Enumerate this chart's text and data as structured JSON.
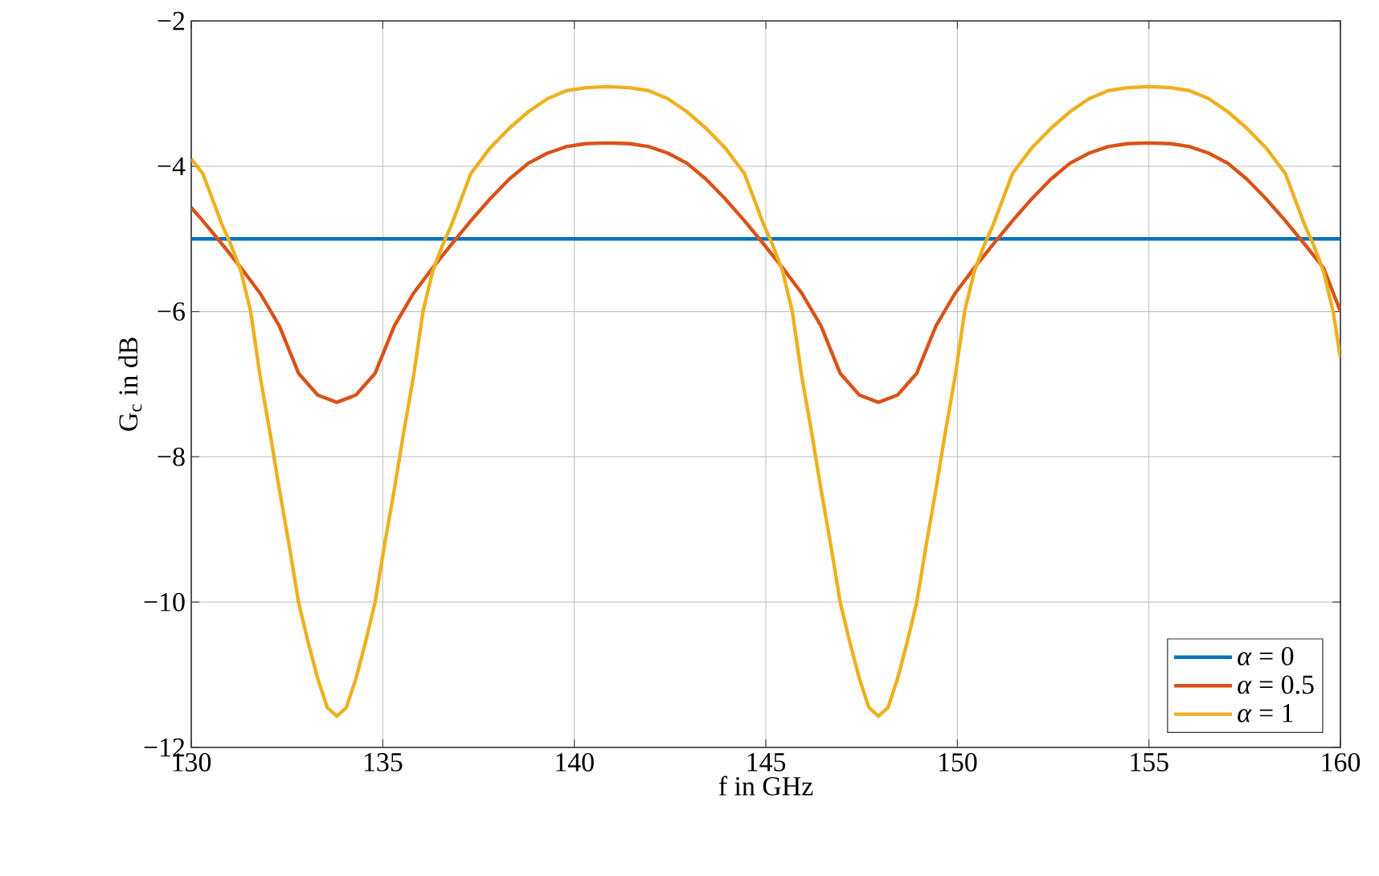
{
  "chart_data": {
    "type": "line",
    "xlabel": "f in GHz",
    "ylabel": "G$_{c}$ in dB",
    "xlim": [
      130,
      160
    ],
    "ylim": [
      -12,
      -2
    ],
    "xticks": [
      130,
      135,
      140,
      145,
      150,
      155,
      160
    ],
    "yticks": [
      {
        "value": -12,
        "label": "−12"
      },
      {
        "value": -10,
        "label": "−10"
      },
      {
        "value": -8,
        "label": "−8"
      },
      {
        "value": -6,
        "label": "−6"
      },
      {
        "value": -4,
        "label": "−4"
      },
      {
        "value": -2,
        "label": "−2"
      }
    ],
    "grid": true,
    "legend": "bottom right",
    "line_style": "solid",
    "marker": "none",
    "series": [
      {
        "name": "*α* = 0",
        "color": "#0072bd",
        "x": [
          130,
          160
        ],
        "values": [
          -5,
          -5
        ]
      },
      {
        "name": "*α* = 0.5",
        "color": "#d95319",
        "x": [
          130,
          130.3,
          130.8,
          131.3,
          131.8,
          132.3,
          132.8,
          133.3,
          133.8,
          134.3,
          134.8,
          135.3,
          135.8,
          136.3,
          136.8,
          137.3,
          137.8,
          138.3,
          138.8,
          139.3,
          139.8,
          140.3,
          140.87,
          141.44,
          141.94,
          142.44,
          142.94,
          143.44,
          143.94,
          144.44,
          144.94,
          145.44,
          145.94,
          146.44,
          146.94,
          147.44,
          147.94,
          148.44,
          148.94,
          149.44,
          149.94,
          150.44,
          150.94,
          151.44,
          151.94,
          152.44,
          152.94,
          153.44,
          153.94,
          154.44,
          155.0,
          155.56,
          156.06,
          156.56,
          157.06,
          157.56,
          158.06,
          158.56,
          159.06,
          159.56,
          160
        ],
        "values": [
          -4.57,
          -4.75,
          -5.07,
          -5.4,
          -5.75,
          -6.2,
          -6.85,
          -7.15,
          -7.25,
          -7.15,
          -6.85,
          -6.2,
          -5.75,
          -5.4,
          -5.07,
          -4.75,
          -4.45,
          -4.18,
          -3.96,
          -3.82,
          -3.73,
          -3.69,
          -3.68,
          -3.69,
          -3.73,
          -3.82,
          -3.96,
          -4.18,
          -4.45,
          -4.75,
          -5.07,
          -5.4,
          -5.75,
          -6.2,
          -6.85,
          -7.15,
          -7.25,
          -7.15,
          -6.85,
          -6.2,
          -5.75,
          -5.4,
          -5.07,
          -4.75,
          -4.45,
          -4.18,
          -3.96,
          -3.82,
          -3.73,
          -3.69,
          -3.68,
          -3.69,
          -3.73,
          -3.82,
          -3.96,
          -4.18,
          -4.45,
          -4.75,
          -5.07,
          -5.4,
          -6.0
        ]
      },
      {
        "name": "*α* = 1",
        "color": "#edb120",
        "x": [
          130,
          130.3,
          130.8,
          131.05,
          131.3,
          131.55,
          131.8,
          132.05,
          132.3,
          132.55,
          132.8,
          133.05,
          133.3,
          133.55,
          133.8,
          134.05,
          134.3,
          134.55,
          134.8,
          135.05,
          135.3,
          135.55,
          135.8,
          136.05,
          136.3,
          136.55,
          136.8,
          137.3,
          137.8,
          138.3,
          138.8,
          139.3,
          139.8,
          140.3,
          140.87,
          141.44,
          141.94,
          142.44,
          142.94,
          143.44,
          143.94,
          144.44,
          144.94,
          145.19,
          145.44,
          145.69,
          145.94,
          146.19,
          146.44,
          146.69,
          146.94,
          147.19,
          147.44,
          147.69,
          147.94,
          148.19,
          148.44,
          148.69,
          148.94,
          149.19,
          149.44,
          149.69,
          149.94,
          150.19,
          150.44,
          150.69,
          150.94,
          151.44,
          151.94,
          152.44,
          152.94,
          153.44,
          153.94,
          154.44,
          155.0,
          155.56,
          156.06,
          156.56,
          157.06,
          157.56,
          158.06,
          158.56,
          159.06,
          159.31,
          159.56,
          159.81,
          160
        ],
        "values": [
          -3.9,
          -4.1,
          -4.8,
          -5.1,
          -5.45,
          -6.0,
          -6.9,
          -7.65,
          -8.45,
          -9.2,
          -10.0,
          -10.55,
          -11.05,
          -11.45,
          -11.57,
          -11.45,
          -11.05,
          -10.55,
          -10.0,
          -9.2,
          -8.45,
          -7.65,
          -6.9,
          -6.0,
          -5.45,
          -5.1,
          -4.8,
          -4.1,
          -3.75,
          -3.48,
          -3.25,
          -3.07,
          -2.96,
          -2.92,
          -2.905,
          -2.92,
          -2.96,
          -3.07,
          -3.25,
          -3.48,
          -3.75,
          -4.1,
          -4.8,
          -5.1,
          -5.45,
          -6.0,
          -6.9,
          -7.65,
          -8.45,
          -9.2,
          -10.0,
          -10.55,
          -11.05,
          -11.45,
          -11.57,
          -11.45,
          -11.05,
          -10.55,
          -10.0,
          -9.2,
          -8.45,
          -7.65,
          -6.9,
          -6.0,
          -5.45,
          -5.1,
          -4.8,
          -4.1,
          -3.75,
          -3.48,
          -3.25,
          -3.07,
          -2.96,
          -2.92,
          -2.905,
          -2.92,
          -2.96,
          -3.07,
          -3.25,
          -3.48,
          -3.75,
          -4.1,
          -4.8,
          -5.1,
          -5.45,
          -6.0,
          -6.64
        ]
      }
    ]
  }
}
